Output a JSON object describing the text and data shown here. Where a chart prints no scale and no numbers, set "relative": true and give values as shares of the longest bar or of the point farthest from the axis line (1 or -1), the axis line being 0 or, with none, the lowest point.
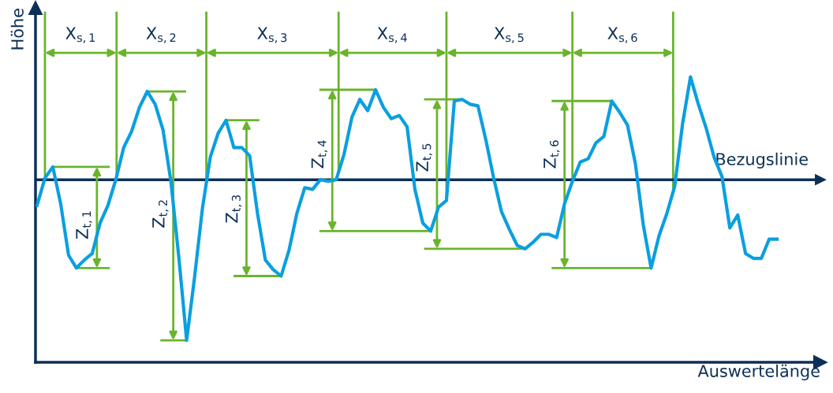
{
  "chart_data": {
    "type": "line",
    "relative": true,
    "tick_labels": false,
    "xlabel": "Auswertelänge",
    "ylabel": "Höhe",
    "categories": [
      null,
      null,
      null,
      null,
      null,
      null,
      null,
      null,
      null,
      null,
      null,
      null,
      null,
      null,
      null,
      null,
      null,
      null,
      null,
      null,
      null,
      null,
      null,
      null,
      null,
      null,
      null,
      null,
      null,
      null,
      null,
      null,
      null,
      null,
      null,
      null,
      null,
      null,
      null,
      null,
      null,
      null,
      null,
      null,
      null,
      null,
      null,
      null,
      null,
      null,
      null,
      null,
      null,
      null,
      null,
      null,
      null,
      null,
      null,
      null,
      null,
      null,
      null,
      null,
      null,
      null,
      null,
      null,
      null,
      null,
      null,
      null,
      null,
      null,
      null,
      null,
      null,
      null,
      null,
      null,
      null,
      null,
      null,
      null,
      null,
      null,
      null,
      null,
      null,
      null,
      null,
      null,
      null,
      null,
      null
    ],
    "series": [
      {
        "color": "#0a9fe0",
        "values": [
          -0.16,
          0.01,
          0.08,
          -0.15,
          -0.47,
          -0.55,
          -0.5,
          -0.46,
          -0.27,
          -0.16,
          0.0,
          0.2,
          0.3,
          0.45,
          0.55,
          0.47,
          0.31,
          -0.01,
          -0.48,
          -1.0,
          -0.61,
          -0.18,
          0.14,
          0.29,
          0.37,
          0.2,
          0.2,
          0.15,
          -0.21,
          -0.5,
          -0.56,
          -0.6,
          -0.44,
          -0.21,
          -0.05,
          -0.06,
          0.0,
          -0.01,
          0.0,
          0.16,
          0.39,
          0.5,
          0.43,
          0.56,
          0.45,
          0.38,
          0.4,
          0.33,
          -0.06,
          -0.27,
          -0.32,
          -0.17,
          -0.13,
          0.49,
          0.5,
          0.47,
          0.46,
          0.25,
          0.01,
          -0.2,
          -0.31,
          -0.41,
          -0.43,
          -0.39,
          -0.34,
          -0.34,
          -0.36,
          -0.15,
          -0.01,
          0.11,
          0.13,
          0.23,
          0.27,
          0.49,
          0.42,
          0.34,
          0.1,
          -0.28,
          -0.55,
          -0.35,
          -0.21,
          -0.04,
          0.35,
          0.64,
          0.47,
          0.32,
          0.14,
          0.02,
          -0.3,
          -0.22,
          -0.46,
          -0.49,
          -0.49,
          -0.37,
          -0.37
        ]
      }
    ],
    "ref_lines": [
      {
        "axis": "y",
        "value": 0,
        "label": "Bezugslinie",
        "color": "#0d2f57"
      }
    ],
    "annotations": [
      "X$_{s,1}$",
      "X$_{s,2}$",
      "X$_{s,3}$",
      "X$_{s,4}$",
      "X$_{s,5}$",
      "X$_{s,6}$",
      "Z$_{t,1}$",
      "Z$_{t,2}$",
      "Z$_{t,3}$",
      "Z$_{t,4}$",
      "Z$_{t,5}$",
      "Z$_{t,6}$"
    ]
  }
}
